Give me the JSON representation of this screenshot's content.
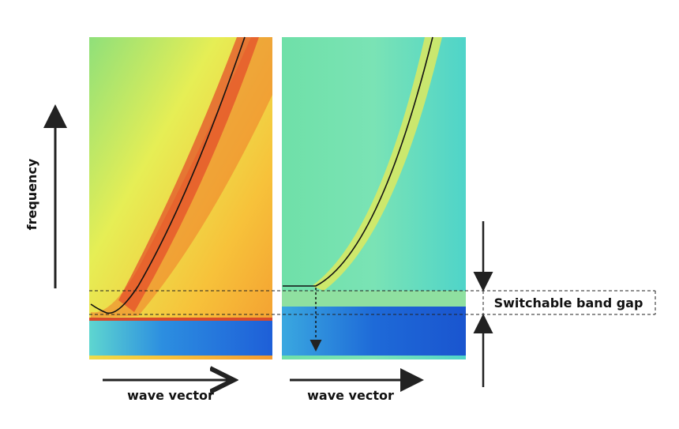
{
  "labels": {
    "y_axis": "frequency",
    "x_axis_left": "wave vector",
    "x_axis_right": "wave vector",
    "annotation": "Switchable band gap"
  }
}
